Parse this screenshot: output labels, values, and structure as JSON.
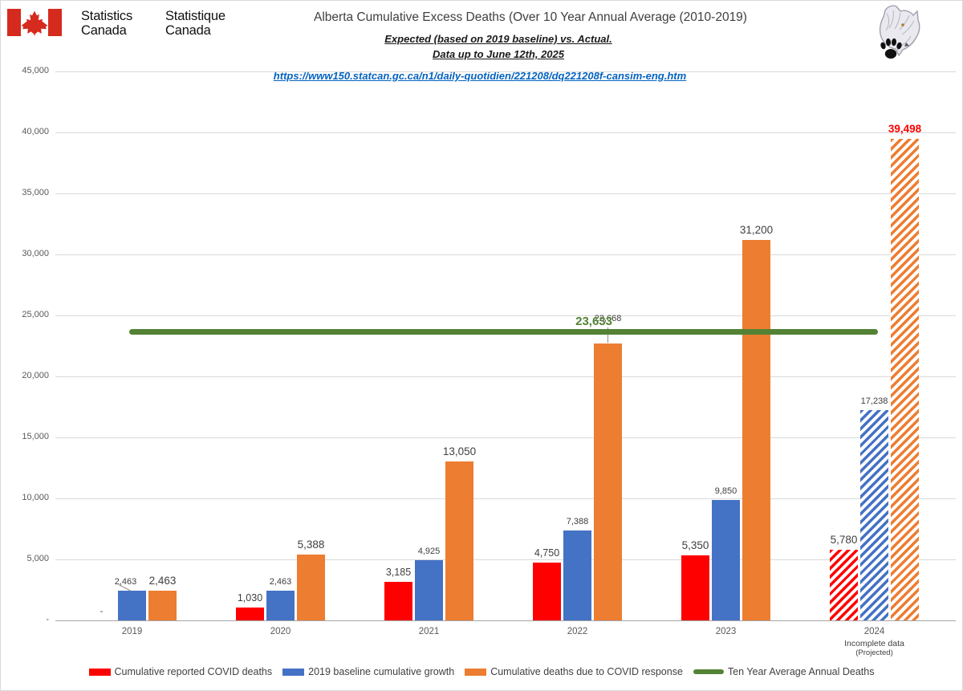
{
  "header": {
    "flag_color": "#D52B1E",
    "wordmark_en_line1": "Statistics",
    "wordmark_en_line2": "Canada",
    "wordmark_fr_line1": "Statistique",
    "wordmark_fr_line2": "Canada"
  },
  "title": "Alberta Cumulative Excess Deaths (Over 10 Year Annual Average (2010-2019)",
  "subtitle_line1": "Expected (based on 2019 baseline) vs. Actual.",
  "subtitle_line2": "Data up to June 12th, 2025",
  "source_link": {
    "text": "https://www150.statcan.gc.ca/n1/daily-quotidien/221208/dq221208f-cansim-eng.htm",
    "url": "https://www150.statcan.gc.ca/n1/daily-quotidien/221208/dq221208f-cansim-eng.htm"
  },
  "chart_data": {
    "type": "bar",
    "title": "Alberta Cumulative Excess Deaths (Over 10 Year Annual Average (2010-2019)",
    "ylim": [
      0,
      45000
    ],
    "ytick_step": 5000,
    "ytick_labels": [
      "-",
      "5,000",
      "10,000",
      "15,000",
      "20,000",
      "25,000",
      "30,000",
      "35,000",
      "40,000",
      "45,000"
    ],
    "grid": true,
    "categories": [
      "2019",
      "2020",
      "2021",
      "2022",
      "2023",
      "2024"
    ],
    "category_note": {
      "category": "2024",
      "lines": [
        "Incomplete data",
        "(Projected)"
      ]
    },
    "hatched_category_index": 5,
    "series": [
      {
        "name": "Cumulative reported COVID deaths",
        "color": "#FF0000",
        "values": [
          0,
          1030,
          3185,
          4750,
          5350,
          5780
        ],
        "labels": [
          {
            "text": "-",
            "size": "sm"
          },
          {
            "text": "1,030",
            "size": "md"
          },
          {
            "text": "3,185",
            "size": "md"
          },
          {
            "text": "4,750",
            "size": "md"
          },
          {
            "text": "5,350",
            "size": "lg"
          },
          {
            "text": "5,780",
            "size": "lg"
          }
        ]
      },
      {
        "name": "2019 baseline cumulative growth",
        "color": "#4472C4",
        "values": [
          2463,
          2463,
          4925,
          7388,
          9850,
          17238
        ],
        "labels": [
          {
            "text": "2,463",
            "size": "sm",
            "leader": "diag"
          },
          {
            "text": "2,463",
            "size": "sm"
          },
          {
            "text": "4,925",
            "size": "sm"
          },
          {
            "text": "7,388",
            "size": "sm"
          },
          {
            "text": "9,850",
            "size": "sm"
          },
          {
            "text": "17,238",
            "size": "sm"
          }
        ]
      },
      {
        "name": "Cumulative deaths due to COVID response",
        "color": "#ED7D31",
        "values": [
          2463,
          5388,
          13050,
          22668,
          31200,
          39498
        ],
        "labels": [
          {
            "text": "2,463",
            "size": "lg"
          },
          {
            "text": "5,388",
            "size": "lg"
          },
          {
            "text": "13,050",
            "size": "lg"
          },
          {
            "text": "22,668",
            "size": "sm",
            "leader": "vert"
          },
          {
            "text": "31,200",
            "size": "lg"
          },
          {
            "text": "39,498",
            "size": "lg",
            "color": "#FF0000",
            "bold": true
          }
        ]
      }
    ],
    "reference_line": {
      "name": "Ten Year Average Annual Deaths",
      "value": 23633,
      "label": "23,633",
      "color": "#548235"
    },
    "legend_position": "bottom",
    "legend": [
      {
        "label": "Cumulative reported COVID deaths",
        "color": "#FF0000",
        "shape": "rect"
      },
      {
        "label": "2019 baseline cumulative growth",
        "color": "#4472C4",
        "shape": "rect"
      },
      {
        "label": "Cumulative deaths due to COVID response",
        "color": "#ED7D31",
        "shape": "rect"
      },
      {
        "label": "Ten Year Average Annual Deaths",
        "color": "#548235",
        "shape": "line"
      }
    ]
  }
}
